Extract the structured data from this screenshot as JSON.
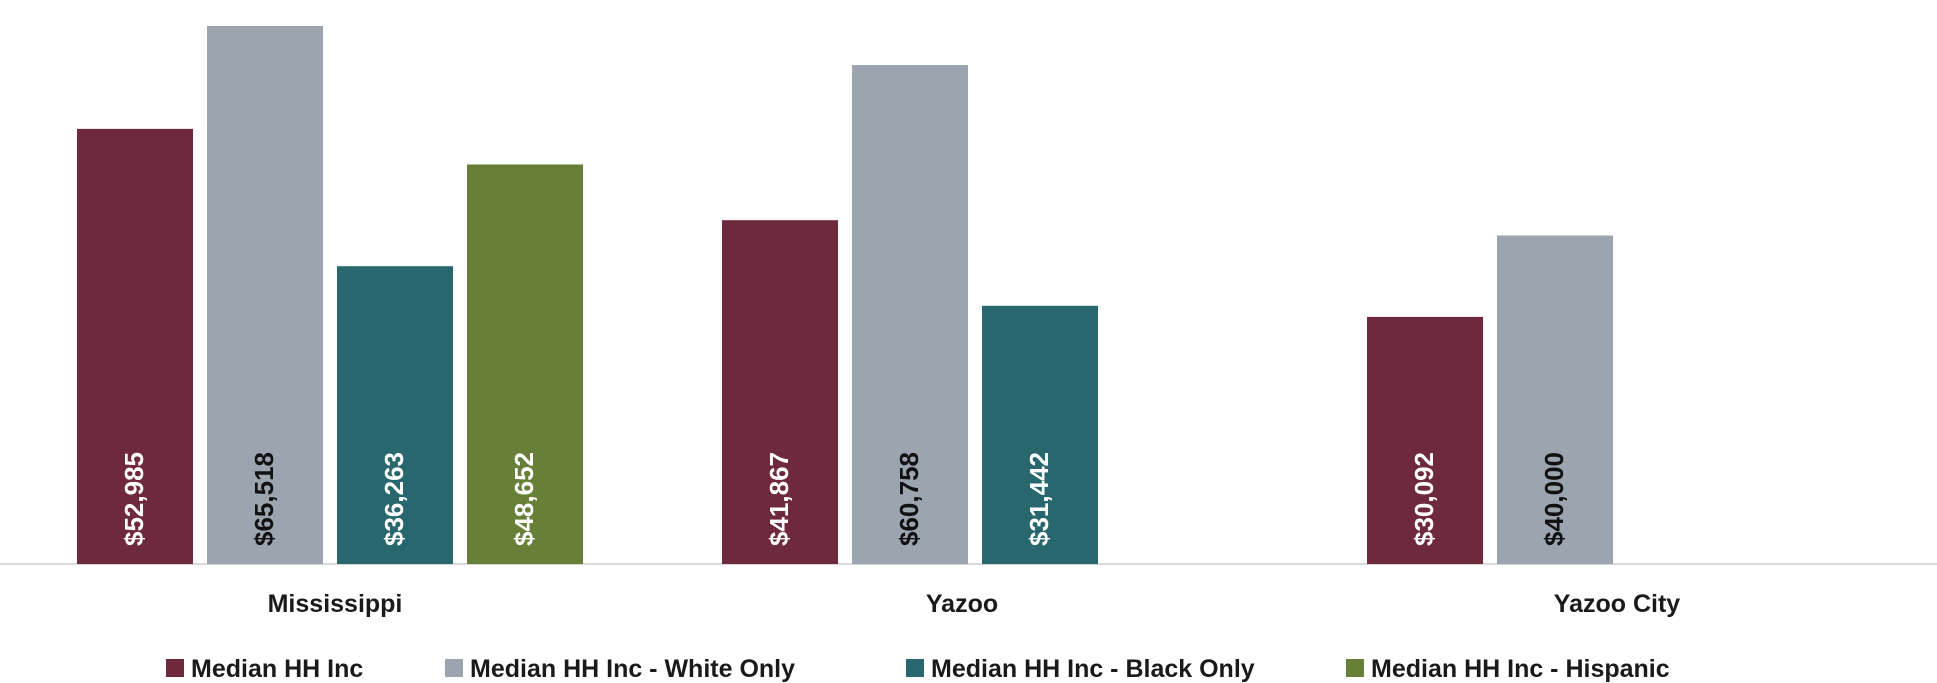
{
  "chart_data": {
    "type": "bar",
    "title": "",
    "xlabel": "",
    "ylabel": "",
    "ylim": [
      0,
      66000
    ],
    "grid": false,
    "legend_position": "bottom",
    "categories": [
      "Mississippi",
      "Yazoo",
      "Yazoo City"
    ],
    "series": [
      {
        "name": "Median HH Inc",
        "color": "#6e2a3c",
        "label_color": "#ffffff",
        "values": [
          52985,
          41867,
          30092
        ],
        "labels": [
          "$52,985",
          "$41,867",
          "$30,092"
        ]
      },
      {
        "name": "Median HH Inc - White Only",
        "color": "#9ba4af",
        "label_color": "#111111",
        "values": [
          65518,
          60758,
          40000
        ],
        "labels": [
          "$65,518",
          "$60,758",
          "$40,000"
        ]
      },
      {
        "name": "Median HH Inc - Black Only",
        "color": "#27676d",
        "label_color": "#ffffff",
        "values": [
          36263,
          31442,
          null
        ],
        "labels": [
          "$36,263",
          "$31,442",
          ""
        ]
      },
      {
        "name": "Median HH Inc - Hispanic",
        "color": "#687f38",
        "label_color": "#ffffff",
        "values": [
          48652,
          null,
          null
        ],
        "labels": [
          "$48,652",
          "",
          ""
        ]
      }
    ]
  }
}
